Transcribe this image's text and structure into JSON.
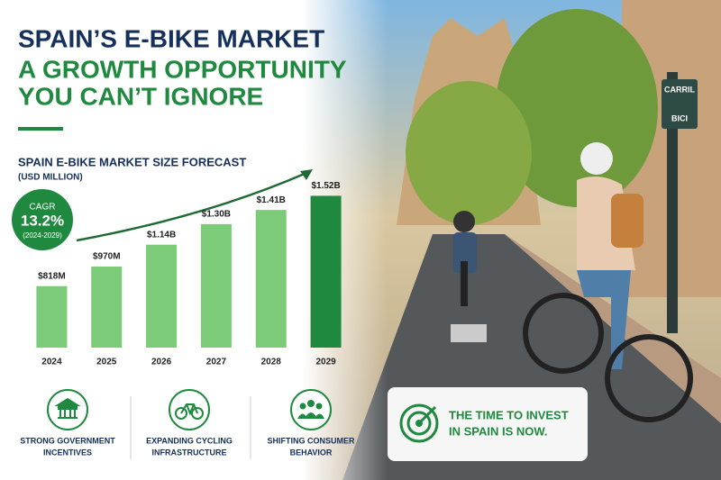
{
  "headline": [
    "SPAIN’S E-BIKE MARKET",
    "A GROWTH OPPORTUNITY",
    "YOU CAN’T IGNORE"
  ],
  "chart_data": {
    "type": "bar",
    "title": "SPAIN E-BIKE MARKET SIZE FORECAST",
    "subtitle": "(USD MILLION)",
    "categories": [
      "2024",
      "2025",
      "2026",
      "2027",
      "2028",
      "2029"
    ],
    "values": [
      818,
      970,
      1140,
      1300,
      1410,
      1520
    ],
    "value_labels": [
      "$818M",
      "$970M",
      "$1.14B",
      "$1.30B",
      "$1.41B",
      "$1.52B"
    ],
    "colors": [
      "#7ccb79",
      "#7ccb79",
      "#7ccb79",
      "#7ccb79",
      "#7ccb79",
      "#1f8a3f"
    ],
    "ylim": [
      340,
      1600
    ],
    "cagr": {
      "label": "CAGR",
      "value": "13.2%",
      "period": "(2024-2029)"
    }
  },
  "features": [
    [
      "STRONG GOVERNMENT",
      "INCENTIVES"
    ],
    [
      "EXPANDING CYCLING",
      "INFRASTRUCTURE"
    ],
    [
      "SHIFTING CONSUMER",
      "BEHAVIOR"
    ]
  ],
  "callout": [
    "THE TIME TO INVEST",
    "IN SPAIN IS NOW."
  ],
  "sign": [
    "CARRIL",
    "BICI"
  ]
}
